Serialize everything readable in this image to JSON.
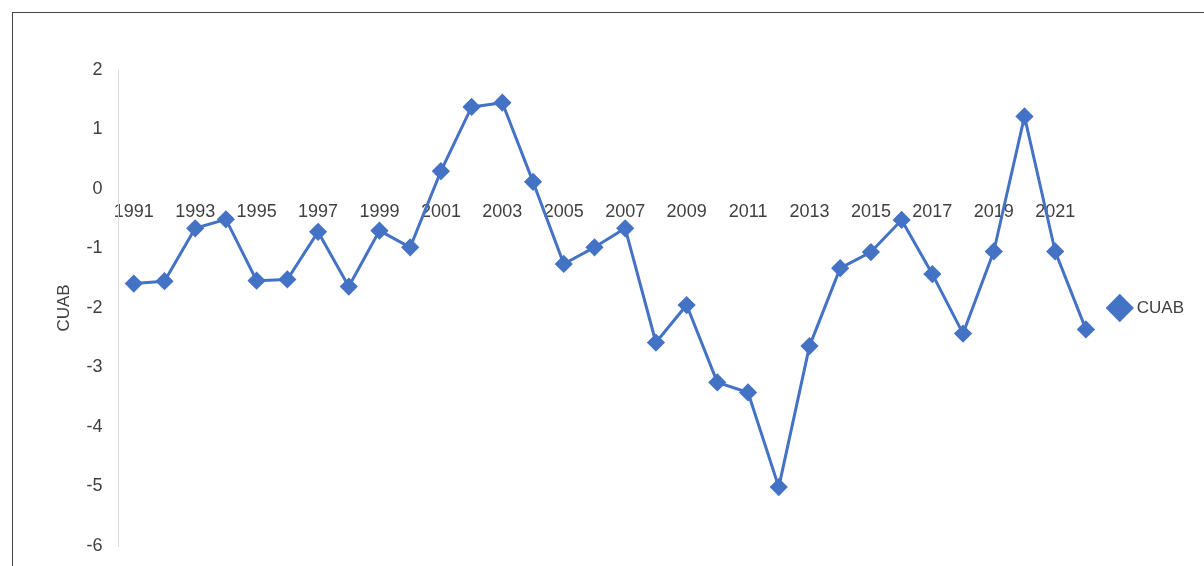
{
  "chart_data": {
    "type": "line",
    "ylabel": "CUAB",
    "categories": [
      "1991",
      null,
      "1993",
      null,
      "1995",
      null,
      "1997",
      null,
      "1999",
      null,
      "2001",
      null,
      "2003",
      null,
      "2005",
      null,
      "2007",
      null,
      "2009",
      null,
      "2011",
      null,
      "2013",
      null,
      "2015",
      null,
      "2017",
      null,
      "2019",
      null,
      "2021",
      null
    ],
    "series": [
      {
        "name": "CUAB",
        "color": "#4472c4",
        "values": [
          -1.59,
          -1.55,
          -0.66,
          -0.51,
          -1.54,
          -1.52,
          -0.72,
          -1.64,
          -0.7,
          -0.98,
          0.3,
          1.38,
          1.45,
          0.12,
          -1.26,
          -0.98,
          -0.66,
          -2.58,
          -1.95,
          -3.25,
          -3.42,
          -5.01,
          -2.64,
          -1.33,
          -1.06,
          -0.52,
          -1.43,
          -2.43,
          -1.05,
          1.22,
          -1.05,
          -2.36
        ]
      }
    ],
    "ylim": [
      -6,
      2
    ],
    "yticks": [
      -6,
      -5,
      -4,
      -3,
      -2,
      -1,
      0,
      1,
      2
    ],
    "grid": false,
    "legend": "right",
    "marker": "diamond",
    "line_style": "solid"
  }
}
